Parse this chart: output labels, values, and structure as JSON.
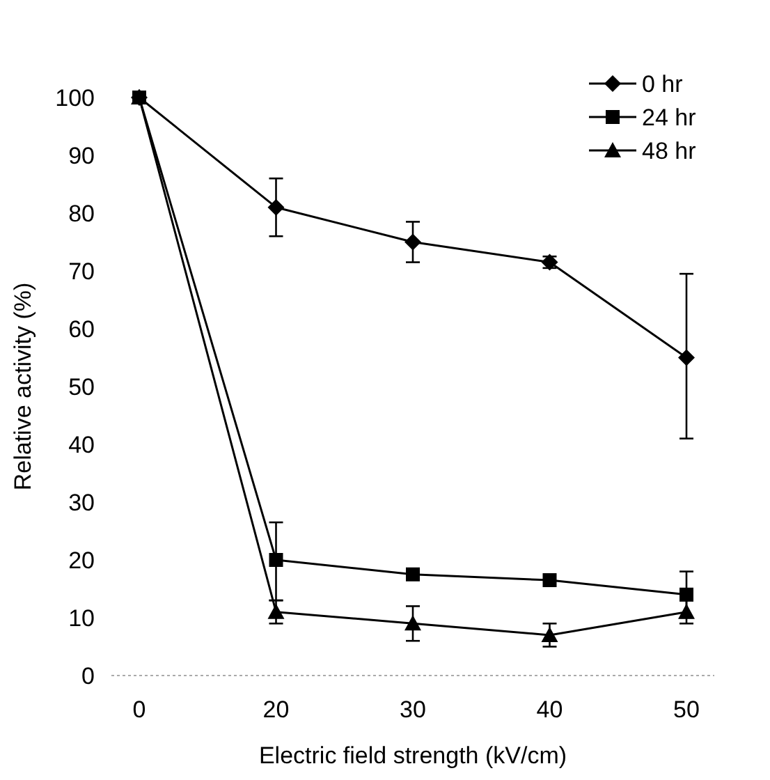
{
  "chart_data": {
    "type": "line",
    "xlabel": "Electric field strength (kV/cm)",
    "ylabel": "Relative activity (%)",
    "categories": [
      "0",
      "20",
      "30",
      "40",
      "50"
    ],
    "ylim": [
      0,
      100
    ],
    "yticks": [
      0,
      10,
      20,
      30,
      40,
      50,
      60,
      70,
      80,
      90,
      100
    ],
    "legend": "top right",
    "grid": false,
    "series": [
      {
        "name": "0 hr",
        "color": "#000000",
        "marker": "diamond",
        "values": [
          100,
          81,
          75,
          71.5,
          55
        ],
        "errors": [
          null,
          5,
          3.5,
          1,
          [
            41,
            69.5
          ]
        ]
      },
      {
        "name": "24 hr",
        "color": "#000000",
        "marker": "square",
        "values": [
          100,
          20,
          17.5,
          16.5,
          14
        ],
        "errors": [
          null,
          [
            13,
            26.5
          ],
          null,
          null,
          4
        ]
      },
      {
        "name": "48 hr",
        "color": "#000000",
        "marker": "triangle",
        "values": [
          100,
          11,
          9,
          7,
          11
        ],
        "errors": [
          null,
          2,
          3,
          2,
          2
        ]
      }
    ]
  }
}
